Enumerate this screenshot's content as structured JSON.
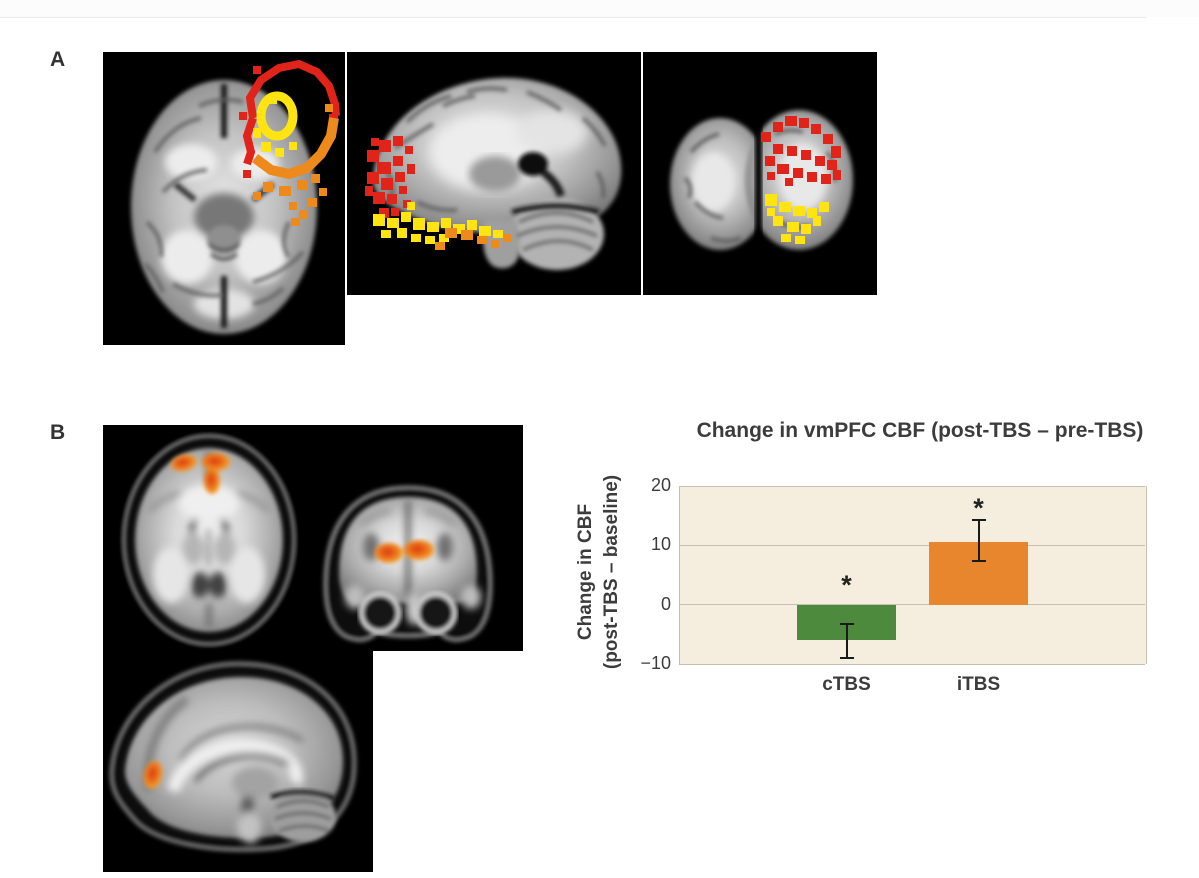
{
  "page": {
    "background": "#ffffff",
    "top_hairline_color": "#eaeaea"
  },
  "panels": {
    "a": {
      "label": "A"
    },
    "b": {
      "label": "B"
    }
  },
  "overlay_colors": {
    "red": "#e0241a",
    "orange": "#ee8a1c",
    "yellow": "#ffe412",
    "hot_cluster": "#e8621a"
  },
  "chart_data": {
    "type": "bar",
    "title": "Change in vmPFC CBF (post-TBS – pre-TBS)",
    "ylabel": [
      "Change in CBF",
      "(post-TBS – baseline)"
    ],
    "categories": [
      "cTBS",
      "iTBS"
    ],
    "values": [
      -6,
      10.5
    ],
    "error_intervals": [
      [
        -9,
        -3.2
      ],
      [
        7.3,
        14.2
      ]
    ],
    "sig_markers": [
      {
        "symbol": "*",
        "value": 3.5
      },
      {
        "symbol": "*",
        "value": 16.5
      }
    ],
    "yticks": [
      20,
      10,
      0,
      -10
    ],
    "ylim": [
      -10,
      20
    ],
    "bar_colors": [
      "#4e8a3e",
      "#e8862e"
    ],
    "plot_bg": "#f5edde",
    "grid_color": "#c6c0b2",
    "text_color": "#3c3c3c",
    "grid": true,
    "legend": false
  }
}
